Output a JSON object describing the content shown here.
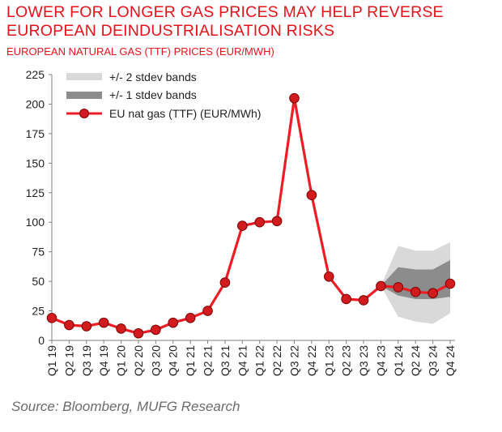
{
  "title_lines": [
    "LOWER FOR LONGER GAS PRICES MAY HELP REVERSE",
    "EUROPEAN DEINDUSTRIALISATION RISKS"
  ],
  "subtitle": "EUROPEAN NATURAL GAS (TTF) PRICES (EUR/MWH)",
  "source": "Source: Bloomberg, MUFG Research",
  "colors": {
    "accent": "#e4131b",
    "line": "#ee1c25",
    "marker_fill": "#d21b1f",
    "band2": "#d9d9d9",
    "band1": "#8c8c8c"
  },
  "chart_data": {
    "type": "line",
    "title": "LOWER FOR LONGER GAS PRICES MAY HELP REVERSE EUROPEAN DEINDUSTRIALISATION RISKS",
    "subtitle": "EUROPEAN NATURAL GAS (TTF) PRICES (EUR/MWH)",
    "xlabel": "",
    "ylabel": "",
    "ylim": [
      0,
      225
    ],
    "yticks": [
      0,
      25,
      50,
      75,
      100,
      125,
      150,
      175,
      200,
      225
    ],
    "grid": false,
    "legend_placement": "top-left",
    "categories": [
      "Q1 19",
      "Q2 19",
      "Q3 19",
      "Q4 19",
      "Q1 20",
      "Q2 20",
      "Q3 20",
      "Q4 20",
      "Q1 21",
      "Q2 21",
      "Q3 21",
      "Q4 21",
      "Q1 22",
      "Q2 22",
      "Q3 22",
      "Q4 22",
      "Q1 23",
      "Q2 23",
      "Q3 23",
      "Q4 23",
      "Q1 24",
      "Q2 24",
      "Q3 24",
      "Q4 24"
    ],
    "series": [
      {
        "name": "EU nat gas (TTF) (EUR/MWh)",
        "values": [
          19,
          13,
          12,
          15,
          10,
          6,
          9,
          15,
          19,
          25,
          49,
          97,
          100,
          101,
          205,
          123,
          54,
          35,
          34,
          46,
          45,
          41,
          40,
          48
        ]
      }
    ],
    "bands": [
      {
        "name": "+/- 2 stdev bands",
        "categories": [
          "Q4 23",
          "Q1 24",
          "Q2 24",
          "Q3 24",
          "Q4 24"
        ],
        "lower": [
          46,
          20,
          16,
          14,
          23
        ],
        "upper": [
          46,
          80,
          76,
          76,
          83
        ]
      },
      {
        "name": "+/- 1 stdev bands",
        "categories": [
          "Q4 23",
          "Q1 24",
          "Q2 24",
          "Q3 24",
          "Q4 24"
        ],
        "lower": [
          46,
          38,
          35,
          35,
          37
        ],
        "upper": [
          46,
          62,
          60,
          60,
          68
        ]
      }
    ],
    "legend": [
      "+/- 2 stdev bands",
      "+/- 1 stdev bands",
      "EU nat gas (TTF) (EUR/MWh)"
    ]
  }
}
